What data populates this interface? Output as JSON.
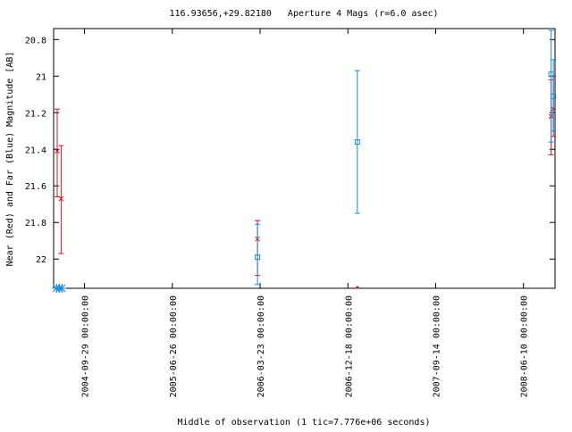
{
  "chart_data": {
    "type": "errorbar",
    "title": "116.93656,+29.82180   Aperture 4 Mags (r=6.0 asec)",
    "y_label": "Near (Red) and Far (Blue) Magnitude [AB]",
    "x_label": "Middle of observation (1 tic=7.776e+06 seconds)",
    "xlim": [
      "2004-06-26",
      "2008-09-15"
    ],
    "xticks": [
      {
        "value": "2004-09-29",
        "label": "2004-09-29 00:00:00"
      },
      {
        "value": "2005-06-26",
        "label": "2005-06-26 00:00:00"
      },
      {
        "value": "2006-03-23",
        "label": "2006-03-23 00:00:00"
      },
      {
        "value": "2006-12-18",
        "label": "2006-12-18 00:00:00"
      },
      {
        "value": "2007-09-14",
        "label": "2007-09-14 00:00:00"
      },
      {
        "value": "2008-06-10",
        "label": "2008-06-10 00:00:00"
      }
    ],
    "ylim": [
      22.16,
      20.74
    ],
    "yticks": [
      20.8,
      21,
      21.2,
      21.4,
      21.6,
      21.8,
      22
    ],
    "series": [
      {
        "color": "#d0161c",
        "marker": "x",
        "x": [
          "2004-07-07",
          "2004-07-19",
          "2006-03-15",
          "2007-01-16",
          "2008-09-03",
          "2008-09-10"
        ],
        "values": [
          21.41,
          21.67,
          21.89,
          22.16,
          21.22,
          21.18
        ],
        "error_low": [
          21.18,
          21.38,
          21.79,
          null,
          21.02,
          21.0
        ],
        "error_high": [
          21.66,
          21.97,
          22.09,
          null,
          21.43,
          21.33
        ]
      },
      {
        "color": "#1a8ad4",
        "marker": "square",
        "x": [
          "2004-07-05",
          "2004-07-14",
          "2004-07-21",
          "2006-03-15",
          "2007-01-16",
          "2008-09-03",
          "2008-09-10"
        ],
        "values": [
          22.16,
          22.16,
          22.16,
          21.99,
          21.36,
          20.99,
          21.11
        ],
        "error_low": [
          null,
          null,
          null,
          21.81,
          20.97,
          20.75,
          20.91
        ],
        "error_high": [
          null,
          null,
          null,
          22.14,
          21.75,
          21.36,
          21.3
        ]
      }
    ]
  }
}
